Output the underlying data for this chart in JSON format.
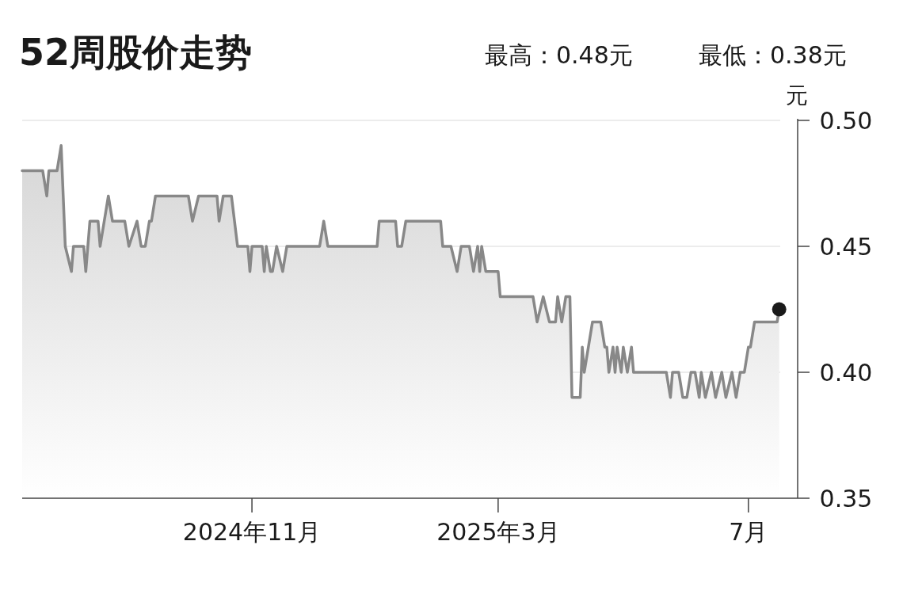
{
  "chart_data": {
    "type": "area",
    "title": "52周股价走势",
    "annotations": [
      "最高：0.48元",
      "最低：0.38元"
    ],
    "ylabel": "元",
    "xlim": [
      "2024-07-12",
      "2025-07-25"
    ],
    "ylim": [
      0.35,
      0.5
    ],
    "xticks": [
      {
        "value": "2024-11-01",
        "label": "2024年11月"
      },
      {
        "value": "2025-03-01",
        "label": "2025年3月"
      },
      {
        "value": "2025-07-01",
        "label": "7月"
      }
    ],
    "yticks": [
      {
        "value": 0.35,
        "label": "0.35"
      },
      {
        "value": 0.4,
        "label": "0.40"
      },
      {
        "value": 0.45,
        "label": "0.45"
      },
      {
        "value": 0.5,
        "label": "0.50"
      }
    ],
    "grid": "y",
    "series": [
      {
        "color": "#888888",
        "x": [
          "2024-07-12",
          "2024-07-22",
          "2024-07-24",
          "2024-07-25",
          "2024-07-29",
          "2024-07-31",
          "2024-08-02",
          "2024-08-05",
          "2024-08-06",
          "2024-08-11",
          "2024-08-12",
          "2024-08-14",
          "2024-08-18",
          "2024-08-19",
          "2024-08-23",
          "2024-08-25",
          "2024-08-31",
          "2024-09-02",
          "2024-09-06",
          "2024-09-08",
          "2024-09-10",
          "2024-09-12",
          "2024-09-13",
          "2024-09-15",
          "2024-10-01",
          "2024-10-03",
          "2024-10-06",
          "2024-10-15",
          "2024-10-16",
          "2024-10-18",
          "2024-10-22",
          "2024-10-25",
          "2024-10-30",
          "2024-10-31",
          "2024-11-01",
          "2024-11-06",
          "2024-11-07",
          "2024-11-08",
          "2024-11-10",
          "2024-11-11",
          "2024-11-13",
          "2024-11-16",
          "2024-11-18",
          "2024-12-04",
          "2024-12-06",
          "2024-12-08",
          "2025-01-01",
          "2025-01-02",
          "2025-01-10",
          "2025-01-11",
          "2025-01-13",
          "2025-01-15",
          "2025-02-01",
          "2025-02-02",
          "2025-02-06",
          "2025-02-09",
          "2025-02-11",
          "2025-02-15",
          "2025-02-17",
          "2025-02-19",
          "2025-02-20",
          "2025-02-21",
          "2025-02-23",
          "2025-03-01",
          "2025-03-02",
          "2025-03-18",
          "2025-03-20",
          "2025-03-23",
          "2025-03-26",
          "2025-03-29",
          "2025-03-30",
          "2025-04-01",
          "2025-04-03",
          "2025-04-05",
          "2025-04-06",
          "2025-04-10",
          "2025-04-11",
          "2025-04-12",
          "2025-04-16",
          "2025-04-20",
          "2025-04-22",
          "2025-04-23",
          "2025-04-24",
          "2025-04-26",
          "2025-04-27",
          "2025-04-28",
          "2025-04-30",
          "2025-05-01",
          "2025-05-03",
          "2025-05-05",
          "2025-05-06",
          "2025-05-22",
          "2025-05-24",
          "2025-05-25",
          "2025-05-28",
          "2025-05-30",
          "2025-06-01",
          "2025-06-03",
          "2025-06-05",
          "2025-06-07",
          "2025-06-08",
          "2025-06-10",
          "2025-06-13",
          "2025-06-15",
          "2025-06-18",
          "2025-06-20",
          "2025-06-23",
          "2025-06-25",
          "2025-06-27",
          "2025-06-29",
          "2025-07-01",
          "2025-07-02",
          "2025-07-04",
          "2025-07-15",
          "2025-07-16"
        ],
        "values": [
          0.48,
          0.48,
          0.47,
          0.48,
          0.48,
          0.49,
          0.45,
          0.44,
          0.45,
          0.45,
          0.44,
          0.46,
          0.46,
          0.45,
          0.47,
          0.46,
          0.46,
          0.45,
          0.46,
          0.45,
          0.45,
          0.46,
          0.46,
          0.47,
          0.47,
          0.46,
          0.47,
          0.47,
          0.46,
          0.47,
          0.47,
          0.45,
          0.45,
          0.44,
          0.45,
          0.45,
          0.44,
          0.45,
          0.44,
          0.44,
          0.45,
          0.44,
          0.45,
          0.45,
          0.46,
          0.45,
          0.45,
          0.46,
          0.46,
          0.45,
          0.45,
          0.46,
          0.46,
          0.45,
          0.45,
          0.44,
          0.45,
          0.45,
          0.44,
          0.45,
          0.44,
          0.45,
          0.44,
          0.44,
          0.43,
          0.43,
          0.42,
          0.43,
          0.42,
          0.42,
          0.43,
          0.42,
          0.43,
          0.43,
          0.39,
          0.39,
          0.41,
          0.4,
          0.42,
          0.42,
          0.41,
          0.41,
          0.4,
          0.41,
          0.4,
          0.41,
          0.4,
          0.41,
          0.4,
          0.41,
          0.4,
          0.4,
          0.39,
          0.4,
          0.4,
          0.39,
          0.39,
          0.4,
          0.4,
          0.39,
          0.4,
          0.39,
          0.4,
          0.39,
          0.4,
          0.39,
          0.4,
          0.39,
          0.4,
          0.4,
          0.41,
          0.41,
          0.42,
          0.42,
          0.425
        ]
      },
      {
        "type": "scatter",
        "marker": "circle",
        "color": "#1a1a1a",
        "x": [
          "2025-07-16"
        ],
        "values": [
          0.425
        ]
      }
    ]
  }
}
